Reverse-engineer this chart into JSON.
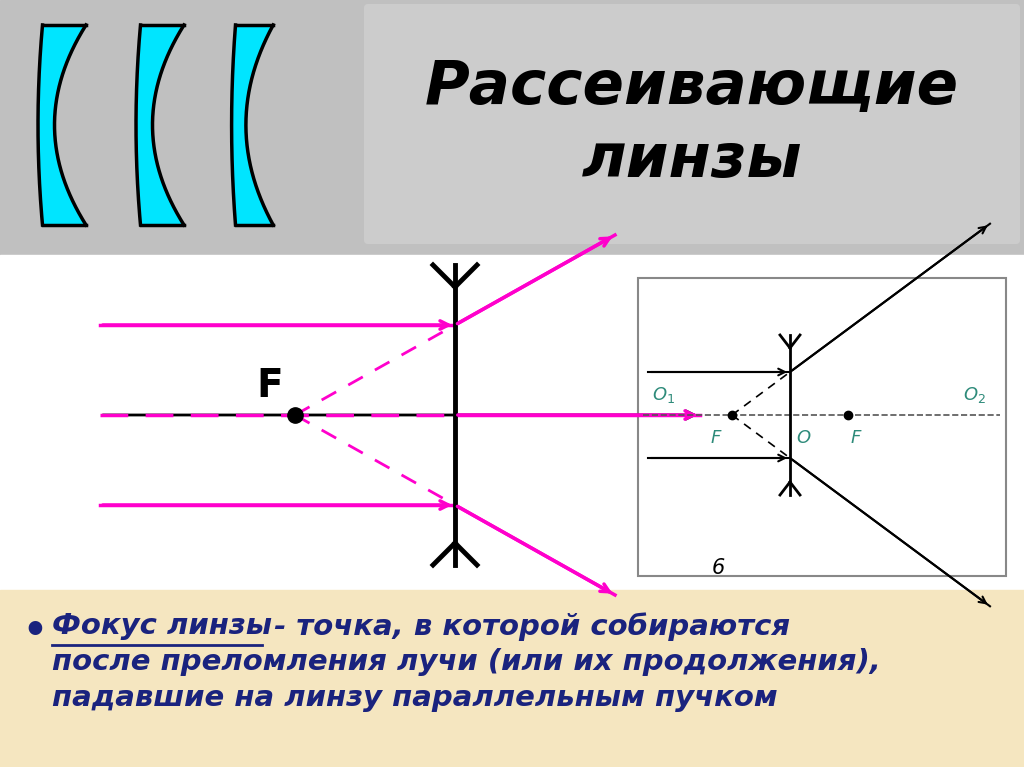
{
  "title": "Рассеивающие\nлинзы",
  "title_color": "#000000",
  "bg_color": "#ffffff",
  "top_panel_color": "#c0c0c0",
  "bottom_panel_color": "#f5e6c0",
  "lens_fill": "#00e5ff",
  "lens_outline": "#000000",
  "magenta": "#ff00cc",
  "black": "#000000",
  "teal": "#2e8b7a",
  "bottom_text_color": "#1a237e",
  "text_line1_main": "Фокус линзы",
  "text_line1_rest": " - точка, в которой собираются",
  "text_line2": "после преломления лучи (или их продолжения),",
  "text_line3": "падавшие на линзу параллельным пучком"
}
